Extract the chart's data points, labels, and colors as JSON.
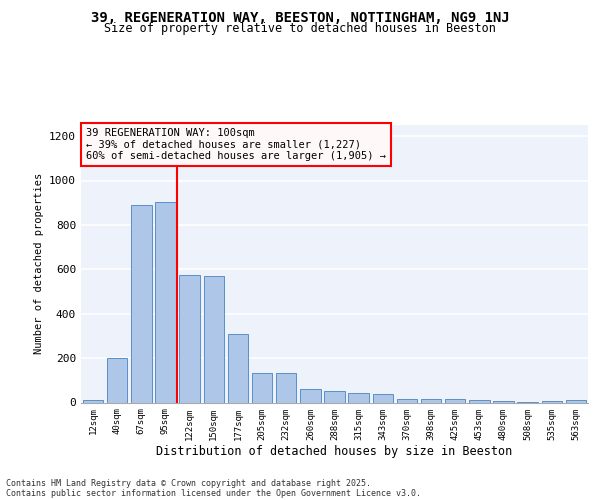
{
  "title_line1": "39, REGENERATION WAY, BEESTON, NOTTINGHAM, NG9 1NJ",
  "title_line2": "Size of property relative to detached houses in Beeston",
  "xlabel": "Distribution of detached houses by size in Beeston",
  "ylabel": "Number of detached properties",
  "categories": [
    "12sqm",
    "40sqm",
    "67sqm",
    "95sqm",
    "122sqm",
    "150sqm",
    "177sqm",
    "205sqm",
    "232sqm",
    "260sqm",
    "288sqm",
    "315sqm",
    "343sqm",
    "370sqm",
    "398sqm",
    "425sqm",
    "453sqm",
    "480sqm",
    "508sqm",
    "535sqm",
    "563sqm"
  ],
  "values": [
    10,
    200,
    890,
    905,
    575,
    570,
    310,
    135,
    135,
    63,
    50,
    42,
    40,
    15,
    18,
    15,
    10,
    5,
    2,
    5,
    10
  ],
  "bar_color": "#aec6e8",
  "bar_edge_color": "#5b8fc9",
  "background_color": "#eef2fb",
  "grid_color": "#ffffff",
  "annotation_text": "39 REGENERATION WAY: 100sqm\n← 39% of detached houses are smaller (1,227)\n60% of semi-detached houses are larger (1,905) →",
  "vline_color": "red",
  "annotation_box_facecolor": "#fff8f8",
  "annotation_box_edge": "red",
  "footer_line1": "Contains HM Land Registry data © Crown copyright and database right 2025.",
  "footer_line2": "Contains public sector information licensed under the Open Government Licence v3.0.",
  "ylim": [
    0,
    1250
  ],
  "yticks": [
    0,
    200,
    400,
    600,
    800,
    1000,
    1200
  ]
}
